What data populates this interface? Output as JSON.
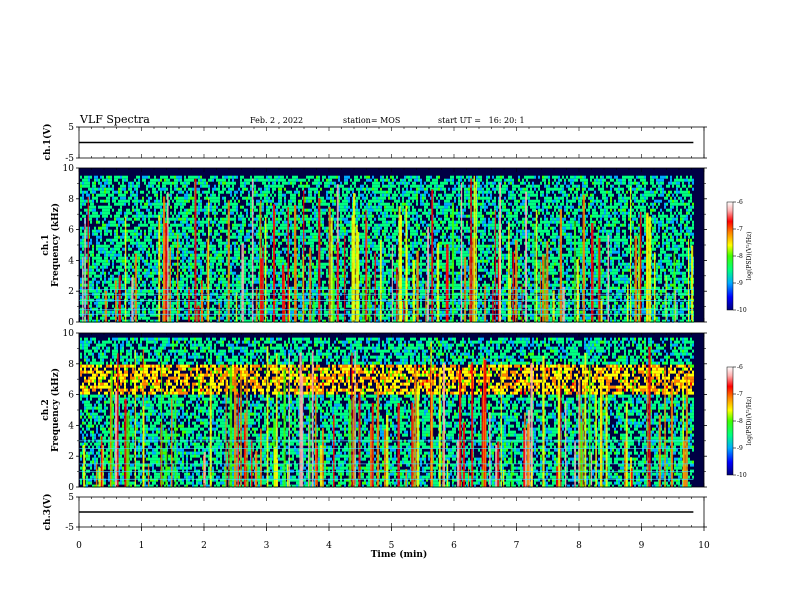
{
  "header": {
    "title": "VLF Spectra",
    "date": "Feb. 2 , 2022",
    "station": "station= MOS",
    "start": "start UT =   16: 20: 1"
  },
  "chart_data": [
    {
      "type": "line",
      "ylabel": "ch.1(V)",
      "ylim": [
        -5,
        5
      ],
      "ytick_labels": [
        "5",
        "-5"
      ],
      "series": [
        {
          "values": [
            0,
            0
          ]
        }
      ],
      "x": [
        0,
        9.83
      ]
    },
    {
      "type": "heatmap",
      "ylabel": "ch.1",
      "ylabel2": "Frequency (kHz)",
      "ylim": [
        0,
        10
      ],
      "ytick_labels": [
        "0",
        "2",
        "4",
        "6",
        "8",
        "10"
      ],
      "colorbar": {
        "label": "log(PSD)(V²/Hz)",
        "range": [
          -10,
          -6
        ],
        "tick_labels": [
          "-6",
          "-7",
          "-8",
          "-9",
          "-10"
        ]
      },
      "bands_khz": [
        0.5,
        0.8,
        1.4,
        1.8,
        2.1
      ],
      "noise_top_khz": 9.5
    },
    {
      "type": "heatmap",
      "ylabel": "ch.2",
      "ylabel2": "Frequency (kHz)",
      "ylim": [
        0,
        10
      ],
      "ytick_labels": [
        "0",
        "2",
        "4",
        "6",
        "8",
        "10"
      ],
      "colorbar": {
        "label": "log(PSD)(V²/Hz)",
        "range": [
          -10,
          -6
        ],
        "tick_labels": [
          "-6",
          "-7",
          "-8",
          "-9",
          "-10"
        ]
      },
      "bands_khz": [
        0.5,
        1.0,
        1.5,
        2.5,
        3.0
      ],
      "peak_band_khz": [
        6,
        8
      ],
      "noise_top_khz": 9.7
    },
    {
      "type": "line",
      "ylabel": "ch.3(V)",
      "ylim": [
        -5,
        5
      ],
      "ytick_labels": [
        "5",
        "-5"
      ],
      "series": [
        {
          "values": [
            0,
            0
          ]
        }
      ],
      "x": [
        0,
        9.83
      ]
    }
  ],
  "x_axis": {
    "label": "Time (min)",
    "xlim": [
      0,
      10
    ],
    "tick_labels": [
      "0",
      "1",
      "2",
      "3",
      "4",
      "5",
      "6",
      "7",
      "8",
      "9",
      "10"
    ]
  },
  "colors": {
    "background": "#ffffff",
    "spectrogram_base": "#000044",
    "colormap": [
      "#00007a",
      "#0000ff",
      "#00aaff",
      "#00ff80",
      "#40ff00",
      "#ffff00",
      "#ff8000",
      "#ff0000",
      "#ffb0b0",
      "#ffffff"
    ]
  }
}
